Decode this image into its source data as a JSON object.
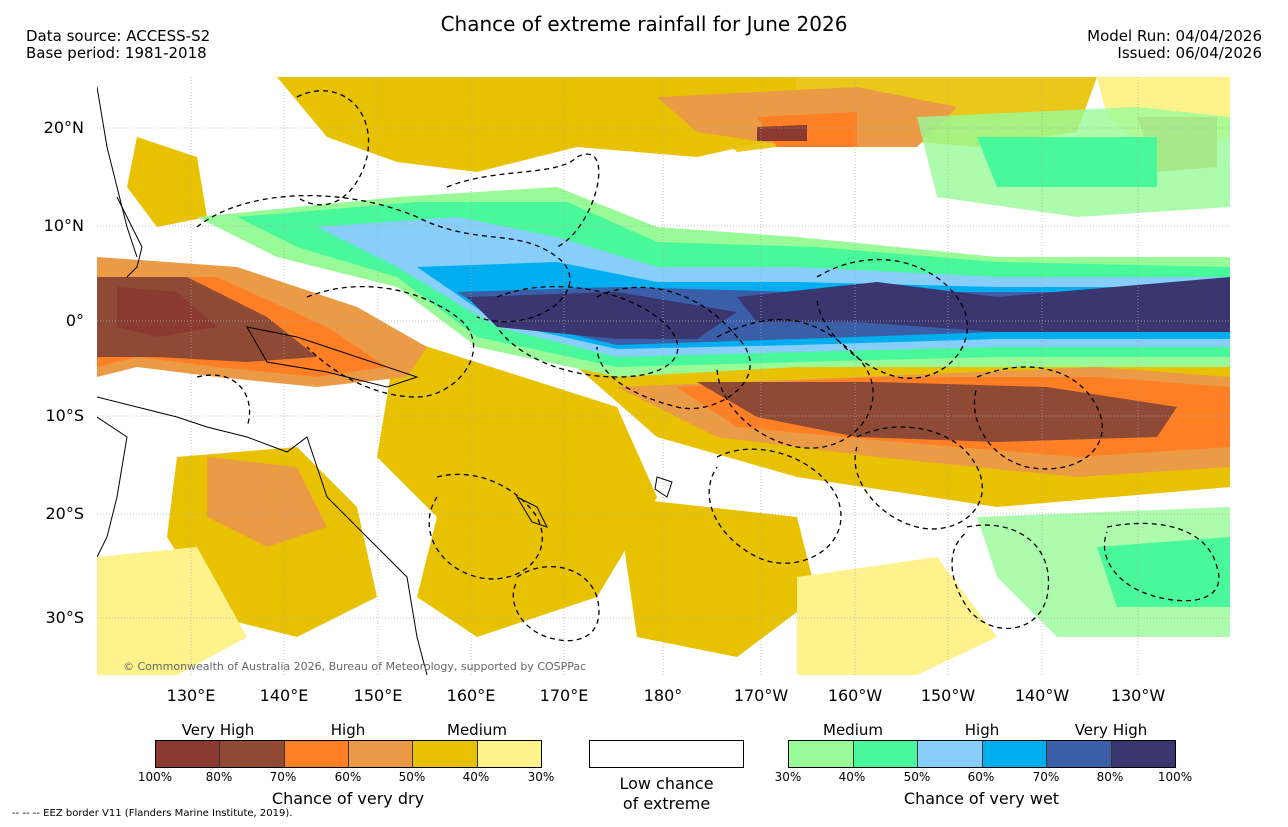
{
  "title": "Chance of extreme rainfall for June 2026",
  "header": {
    "data_source": "Data source: ACCESS-S2",
    "base_period": "Base period: 1981-2018",
    "model_run": "Model Run: 04/04/2026",
    "issued": "Issued: 06/04/2026"
  },
  "map": {
    "lat_labels": [
      "20°N",
      "10°N",
      "0°",
      "10°S",
      "20°S",
      "30°S"
    ],
    "lon_labels": [
      "130°E",
      "140°E",
      "150°E",
      "160°E",
      "170°E",
      "180°",
      "170°W",
      "160°W",
      "150°W",
      "140°W",
      "130°W"
    ],
    "copyright": "© Commonwealth of Australia 2026, Bureau of Meteorology, supported by COSPPac"
  },
  "legend_dry": {
    "categories": [
      "Very High",
      "High",
      "Medium"
    ],
    "ticks": [
      "100%",
      "80%",
      "70%",
      "60%",
      "50%",
      "40%",
      "30%"
    ],
    "colors": [
      "#8b3a2f",
      "#8e4a35",
      "#ff7f24",
      "#eb9b46",
      "#e8c200",
      "#fdf28c"
    ],
    "caption": "Chance of very dry"
  },
  "legend_low": {
    "caption_line1": "Low chance",
    "caption_line2": "of extreme"
  },
  "legend_wet": {
    "categories": [
      "Medium",
      "High",
      "Very High"
    ],
    "ticks": [
      "30%",
      "40%",
      "50%",
      "60%",
      "70%",
      "80%",
      "100%"
    ],
    "colors": [
      "#98fb98",
      "#48f89b",
      "#87cefa",
      "#00aeef",
      "#3b5ea8",
      "#3a3770"
    ],
    "caption": "Chance of very wet"
  },
  "footnote": "-- -- -- EEZ border V11 (Flanders Marine Institute, 2019)."
}
